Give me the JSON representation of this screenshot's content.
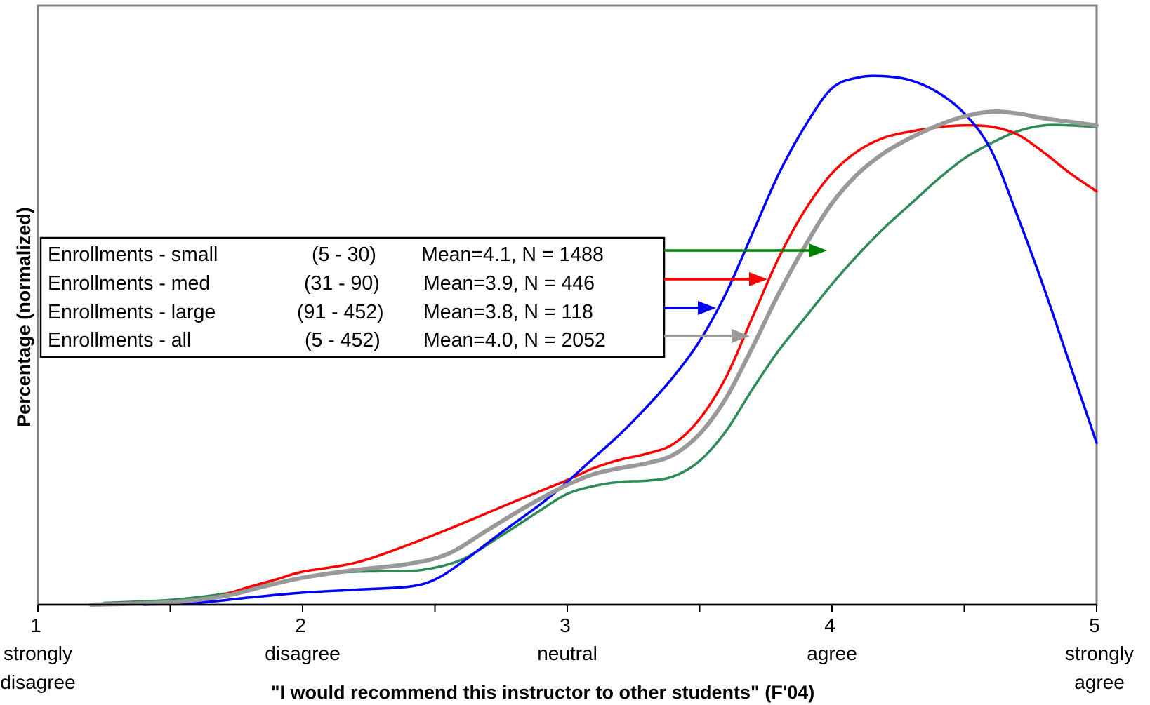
{
  "chart_data": {
    "type": "line",
    "title": "",
    "xlabel": "\"I would recommend this instructor to other students\" (F'04)",
    "ylabel": "Percentage (normalized)",
    "xlim": [
      1,
      5
    ],
    "ylim": [
      0,
      1
    ],
    "grid": false,
    "legend_position": "center-left",
    "x_ticks": [
      {
        "value": 1,
        "label": "1",
        "sublabel": [
          "strongly",
          "disagree"
        ]
      },
      {
        "value": 2,
        "label": "2",
        "sublabel": [
          "disagree"
        ]
      },
      {
        "value": 3,
        "label": "3",
        "sublabel": [
          "neutral"
        ]
      },
      {
        "value": 4,
        "label": "4",
        "sublabel": [
          "agree"
        ]
      },
      {
        "value": 5,
        "label": "5",
        "sublabel": [
          "strongly",
          "agree"
        ]
      }
    ],
    "series": [
      {
        "name": "Enrollments - small",
        "range": "(5 - 30)",
        "stats": "Mean=4.1, N = 1488",
        "color": "#2e8b57",
        "arrow_color": "#008000",
        "mean": 4.1,
        "points": [
          [
            1.25,
            0.003
          ],
          [
            1.5,
            0.008
          ],
          [
            1.7,
            0.018
          ],
          [
            1.85,
            0.032
          ],
          [
            2.0,
            0.045
          ],
          [
            2.15,
            0.054
          ],
          [
            2.3,
            0.056
          ],
          [
            2.45,
            0.058
          ],
          [
            2.6,
            0.075
          ],
          [
            2.75,
            0.115
          ],
          [
            2.9,
            0.158
          ],
          [
            3.0,
            0.185
          ],
          [
            3.1,
            0.198
          ],
          [
            3.2,
            0.205
          ],
          [
            3.3,
            0.207
          ],
          [
            3.4,
            0.214
          ],
          [
            3.5,
            0.24
          ],
          [
            3.6,
            0.29
          ],
          [
            3.7,
            0.36
          ],
          [
            3.8,
            0.425
          ],
          [
            3.9,
            0.48
          ],
          [
            4.0,
            0.535
          ],
          [
            4.1,
            0.585
          ],
          [
            4.2,
            0.63
          ],
          [
            4.3,
            0.67
          ],
          [
            4.4,
            0.71
          ],
          [
            4.5,
            0.745
          ],
          [
            4.6,
            0.77
          ],
          [
            4.7,
            0.79
          ],
          [
            4.8,
            0.8
          ],
          [
            4.9,
            0.8
          ],
          [
            5.0,
            0.797
          ]
        ]
      },
      {
        "name": "Enrollments - med",
        "range": "(31 - 90)",
        "stats": "Mean=3.9, N = 446",
        "color": "#ff0000",
        "arrow_color": "#ff0000",
        "mean": 3.9,
        "points": [
          [
            1.3,
            0.0
          ],
          [
            1.5,
            0.002
          ],
          [
            1.65,
            0.01
          ],
          [
            1.8,
            0.03
          ],
          [
            1.9,
            0.042
          ],
          [
            2.0,
            0.055
          ],
          [
            2.2,
            0.07
          ],
          [
            2.4,
            0.1
          ],
          [
            2.6,
            0.135
          ],
          [
            2.8,
            0.172
          ],
          [
            3.0,
            0.208
          ],
          [
            3.1,
            0.228
          ],
          [
            3.2,
            0.242
          ],
          [
            3.3,
            0.252
          ],
          [
            3.4,
            0.268
          ],
          [
            3.5,
            0.31
          ],
          [
            3.6,
            0.38
          ],
          [
            3.7,
            0.48
          ],
          [
            3.8,
            0.58
          ],
          [
            3.9,
            0.66
          ],
          [
            4.0,
            0.72
          ],
          [
            4.1,
            0.758
          ],
          [
            4.2,
            0.78
          ],
          [
            4.3,
            0.79
          ],
          [
            4.4,
            0.797
          ],
          [
            4.5,
            0.8
          ],
          [
            4.6,
            0.798
          ],
          [
            4.7,
            0.785
          ],
          [
            4.8,
            0.755
          ],
          [
            4.9,
            0.72
          ],
          [
            5.0,
            0.69
          ]
        ]
      },
      {
        "name": "Enrollments - large",
        "range": "(91 - 452)",
        "stats": "Mean=3.8, N = 118",
        "color": "#0000ff",
        "arrow_color": "#0000ff",
        "mean": 3.8,
        "points": [
          [
            1.4,
            0.0
          ],
          [
            1.6,
            0.003
          ],
          [
            1.8,
            0.012
          ],
          [
            2.0,
            0.02
          ],
          [
            2.2,
            0.025
          ],
          [
            2.4,
            0.03
          ],
          [
            2.5,
            0.042
          ],
          [
            2.6,
            0.07
          ],
          [
            2.75,
            0.12
          ],
          [
            2.9,
            0.168
          ],
          [
            3.0,
            0.205
          ],
          [
            3.1,
            0.245
          ],
          [
            3.2,
            0.285
          ],
          [
            3.3,
            0.33
          ],
          [
            3.4,
            0.38
          ],
          [
            3.5,
            0.44
          ],
          [
            3.6,
            0.52
          ],
          [
            3.7,
            0.62
          ],
          [
            3.8,
            0.72
          ],
          [
            3.9,
            0.8
          ],
          [
            4.0,
            0.862
          ],
          [
            4.1,
            0.88
          ],
          [
            4.2,
            0.882
          ],
          [
            4.3,
            0.875
          ],
          [
            4.4,
            0.855
          ],
          [
            4.5,
            0.82
          ],
          [
            4.6,
            0.76
          ],
          [
            4.7,
            0.65
          ],
          [
            4.8,
            0.53
          ],
          [
            4.9,
            0.4
          ],
          [
            5.0,
            0.27
          ]
        ]
      },
      {
        "name": "Enrollments - all",
        "range": "(5 - 452)",
        "stats": "Mean=4.0, N = 2052",
        "color": "#999999",
        "arrow_color": "#999999",
        "mean": 4.0,
        "points": [
          [
            1.2,
            0.0
          ],
          [
            1.5,
            0.004
          ],
          [
            1.7,
            0.014
          ],
          [
            1.85,
            0.03
          ],
          [
            2.0,
            0.045
          ],
          [
            2.2,
            0.058
          ],
          [
            2.4,
            0.068
          ],
          [
            2.55,
            0.085
          ],
          [
            2.7,
            0.125
          ],
          [
            2.85,
            0.165
          ],
          [
            3.0,
            0.2
          ],
          [
            3.1,
            0.218
          ],
          [
            3.2,
            0.228
          ],
          [
            3.3,
            0.236
          ],
          [
            3.4,
            0.25
          ],
          [
            3.5,
            0.285
          ],
          [
            3.6,
            0.345
          ],
          [
            3.7,
            0.43
          ],
          [
            3.8,
            0.52
          ],
          [
            3.9,
            0.6
          ],
          [
            4.0,
            0.67
          ],
          [
            4.1,
            0.72
          ],
          [
            4.2,
            0.755
          ],
          [
            4.3,
            0.78
          ],
          [
            4.4,
            0.8
          ],
          [
            4.5,
            0.815
          ],
          [
            4.6,
            0.823
          ],
          [
            4.7,
            0.82
          ],
          [
            4.8,
            0.812
          ],
          [
            4.9,
            0.806
          ],
          [
            5.0,
            0.8
          ]
        ]
      }
    ]
  }
}
